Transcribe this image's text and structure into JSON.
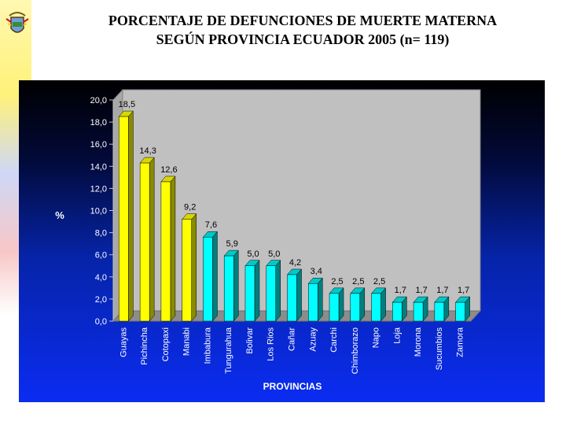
{
  "page": {
    "title_line1": "PORCENTAJE DE DEFUNCIONES DE MUERTE MATERNA",
    "title_line2": "SEGÚN PROVINCIA ECUADOR 2005 (n= 119)",
    "emblem_icon": "coat-of-arms-icon"
  },
  "chart_data": {
    "type": "bar",
    "title": "PORCENTAJE DE DEFUNCIONES DE MUERTE MATERNA SEGÚN PROVINCIA ECUADOR 2005 (n= 119)",
    "xlabel": "PROVINCIAS",
    "ylabel": "%",
    "ylim": [
      0,
      20
    ],
    "yticks": [
      "0,0",
      "2,0",
      "4,0",
      "6,0",
      "8,0",
      "10,0",
      "12,0",
      "14,0",
      "16,0",
      "18,0",
      "20,0"
    ],
    "grid": false,
    "categories": [
      "Guayas",
      "Pichincha",
      "Cotopaxi",
      "Manabi",
      "Imbabura",
      "Tungurahua",
      "Bolivar",
      "Los Rios",
      "Cañar",
      "Azuay",
      "Carchi",
      "Chimborazo",
      "Napo",
      "Loja",
      "Morona",
      "Sucumbios",
      "Zamora"
    ],
    "values": [
      18.5,
      14.3,
      12.6,
      9.2,
      7.6,
      5.9,
      5.0,
      5.0,
      4.2,
      3.4,
      2.5,
      2.5,
      2.5,
      1.7,
      1.7,
      1.7,
      1.7
    ],
    "value_labels": [
      "18,5",
      "14,3",
      "12,6",
      "9,2",
      "7,6",
      "5,9",
      "5,0",
      "5,0",
      "4,2",
      "3,4",
      "2,5",
      "2,5",
      "2,5",
      "1,7",
      "1,7",
      "1,7",
      "1,7"
    ],
    "colors": {
      "highlight": "#ffff00",
      "highlight_top": "#d8d800",
      "highlight_side": "#8a8a00",
      "normal": "#00ffff",
      "normal_top": "#00c8c8",
      "normal_side": "#007f7f",
      "plot_back": "#c0c0c0",
      "plot_floor": "#8c8c8c",
      "text": "#ffffff",
      "value_text": "#000000"
    },
    "highlight_count": 4
  }
}
